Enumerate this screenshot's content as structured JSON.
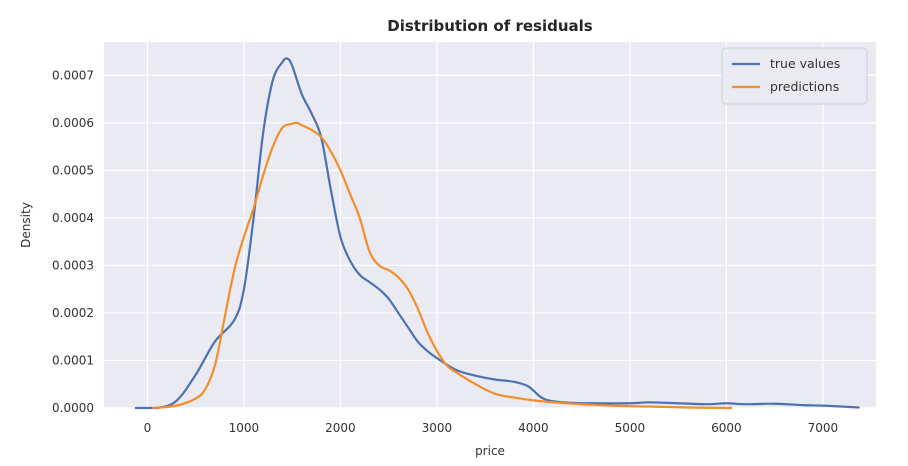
{
  "chart_data": {
    "type": "line",
    "title": "Distribution of residuals",
    "xlabel": "price",
    "ylabel": "Density",
    "xlim": [
      -450,
      7550
    ],
    "ylim": [
      0,
      0.00077
    ],
    "x_ticks": [
      0,
      1000,
      2000,
      3000,
      4000,
      5000,
      6000,
      7000
    ],
    "x_tick_labels": [
      "0",
      "1000",
      "2000",
      "3000",
      "4000",
      "5000",
      "6000",
      "7000"
    ],
    "y_ticks": [
      0,
      0.0001,
      0.0002,
      0.0003,
      0.0004,
      0.0005,
      0.0006,
      0.0007
    ],
    "y_tick_labels": [
      "0.0000",
      "0.0001",
      "0.0002",
      "0.0003",
      "0.0004",
      "0.0005",
      "0.0006",
      "0.0007"
    ],
    "grid": true,
    "legend_position": "top-right",
    "series": [
      {
        "name": "true values",
        "color": "#4c72b0",
        "x": [
          -120,
          100,
          300,
          500,
          700,
          900,
          1000,
          1100,
          1200,
          1300,
          1400,
          1450,
          1500,
          1600,
          1700,
          1800,
          1900,
          2000,
          2100,
          2200,
          2300,
          2400,
          2500,
          2600,
          2700,
          2800,
          2900,
          3000,
          3200,
          3400,
          3600,
          3800,
          3950,
          4100,
          4300,
          4600,
          5000,
          5200,
          5500,
          5800,
          6000,
          6200,
          6500,
          6800,
          7000,
          7200,
          7370
        ],
        "y": [
          0,
          0,
          1.5e-05,
          7e-05,
          0.00014,
          0.000185,
          0.00025,
          0.0004,
          0.00058,
          0.00069,
          0.000728,
          0.000735,
          0.00072,
          0.00066,
          0.00062,
          0.00057,
          0.00046,
          0.00036,
          0.00031,
          0.00028,
          0.000265,
          0.00025,
          0.00023,
          0.0002,
          0.00017,
          0.00014,
          0.00012,
          0.000105,
          8e-05,
          6.8e-05,
          6e-05,
          5.5e-05,
          4.5e-05,
          2e-05,
          1.2e-05,
          1e-05,
          1e-05,
          1.2e-05,
          1e-05,
          8e-06,
          1e-05,
          8e-06,
          9e-06,
          6e-06,
          5e-06,
          3e-06,
          1e-06
        ]
      },
      {
        "name": "predictions",
        "color": "#f28e2b",
        "x": [
          60,
          300,
          500,
          600,
          700,
          800,
          900,
          1000,
          1100,
          1200,
          1300,
          1400,
          1500,
          1550,
          1600,
          1700,
          1800,
          1900,
          2000,
          2100,
          2200,
          2300,
          2400,
          2500,
          2600,
          2700,
          2800,
          2900,
          3000,
          3100,
          3200,
          3400,
          3600,
          3800,
          4000,
          4200,
          4500,
          4800,
          5200,
          5600,
          6050
        ],
        "y": [
          0,
          5e-06,
          2e-05,
          4e-05,
          9e-05,
          0.00019,
          0.00029,
          0.00036,
          0.00042,
          0.00049,
          0.00055,
          0.00059,
          0.000598,
          0.0006,
          0.000595,
          0.000585,
          0.00057,
          0.00054,
          0.0005,
          0.00045,
          0.0004,
          0.00033,
          0.0003,
          0.00029,
          0.000275,
          0.00025,
          0.00021,
          0.00016,
          0.00012,
          9e-05,
          7.5e-05,
          5e-05,
          3e-05,
          2.2e-05,
          1.6e-05,
          1.2e-05,
          8e-06,
          5e-06,
          3e-06,
          1e-06,
          0
        ]
      }
    ]
  }
}
